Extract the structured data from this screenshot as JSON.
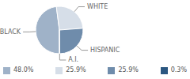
{
  "chart_data": {
    "type": "pie",
    "categories": [
      "BLACK",
      "WHITE",
      "HISPANIC",
      "A.I."
    ],
    "values": [
      48.0,
      25.9,
      25.9,
      0.3
    ],
    "value_labels": [
      "48.0%",
      "25.9%",
      "25.9%",
      "0.3%"
    ],
    "colors": [
      "#9fb2c8",
      "#d6dee8",
      "#6f8cab",
      "#2b5781"
    ],
    "legend": "bottom"
  }
}
